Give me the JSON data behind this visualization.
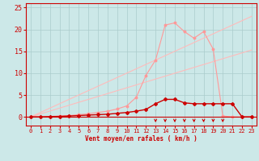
{
  "bg_color": "#cce8e8",
  "grid_color": "#aacccc",
  "xlim": [
    -0.5,
    23.5
  ],
  "ylim": [
    -2,
    26
  ],
  "xlabel": "Vent moyen/en rafales ( km/h )",
  "xticks": [
    0,
    1,
    2,
    3,
    4,
    5,
    6,
    7,
    8,
    9,
    10,
    11,
    12,
    13,
    14,
    15,
    16,
    17,
    18,
    19,
    20,
    21,
    22,
    23
  ],
  "yticks": [
    0,
    5,
    10,
    15,
    20,
    25
  ],
  "ref_line1_x": [
    0,
    23
  ],
  "ref_line1_y": [
    0,
    23
  ],
  "ref_line2_x": [
    0,
    23
  ],
  "ref_line2_y": [
    0,
    15.3
  ],
  "gust_x": [
    0,
    1,
    2,
    3,
    4,
    5,
    6,
    7,
    8,
    9,
    10,
    11,
    12,
    13,
    14,
    15,
    16,
    17,
    18,
    19,
    20,
    21,
    22,
    23
  ],
  "gust_y": [
    0,
    0,
    0.1,
    0.2,
    0.3,
    0.5,
    0.7,
    1.0,
    1.3,
    1.8,
    2.5,
    4.5,
    9.5,
    13.0,
    21.0,
    21.5,
    19.5,
    18.0,
    19.5,
    15.5,
    0.2,
    0,
    0,
    0
  ],
  "mean_x": [
    0,
    1,
    2,
    3,
    4,
    5,
    6,
    7,
    8,
    9,
    10,
    11,
    12,
    13,
    14,
    15,
    16,
    17,
    18,
    19,
    20,
    21,
    22,
    23
  ],
  "mean_y": [
    0,
    0,
    0.05,
    0.1,
    0.2,
    0.3,
    0.4,
    0.5,
    0.6,
    0.8,
    1.0,
    1.3,
    1.7,
    3.0,
    4.0,
    4.0,
    3.2,
    3.0,
    3.0,
    3.0,
    3.0,
    3.0,
    0,
    0
  ],
  "arrows_x": [
    13,
    14,
    15,
    16,
    17,
    18,
    19,
    20
  ],
  "ref_color": "#ffbbbb",
  "gust_color": "#ff9999",
  "mean_color": "#cc0000",
  "arrow_color": "#cc0000",
  "tick_color": "#cc0000",
  "spine_color": "#cc0000"
}
